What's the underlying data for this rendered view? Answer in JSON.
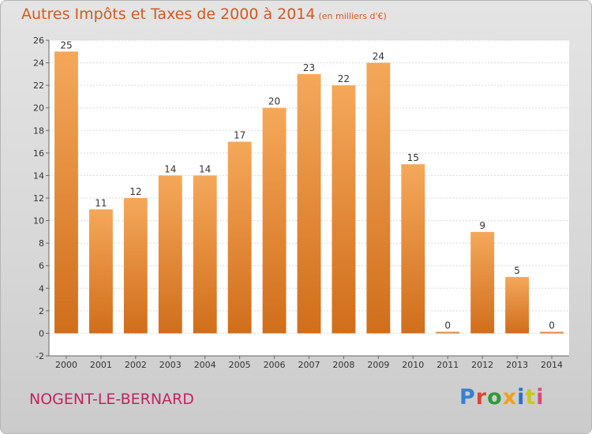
{
  "chart_data": {
    "type": "bar",
    "title": "Autres Impôts et Taxes de 2000 à 2014",
    "subtitle": "(en milliers d'€)",
    "categories": [
      "2000",
      "2001",
      "2002",
      "2003",
      "2004",
      "2005",
      "2006",
      "2007",
      "2008",
      "2009",
      "2010",
      "2011",
      "2012",
      "2013",
      "2014"
    ],
    "values": [
      25,
      11,
      12,
      14,
      14,
      17,
      20,
      23,
      22,
      24,
      15,
      0,
      9,
      5,
      0
    ],
    "ylim": [
      -2,
      26
    ],
    "yticks": [
      -2,
      0,
      2,
      4,
      6,
      8,
      10,
      12,
      14,
      16,
      18,
      20,
      22,
      24,
      26
    ],
    "grid": true,
    "xlabel": "",
    "ylabel": ""
  },
  "footer": {
    "place": "NOGENT-LE-BERNARD",
    "logo": "Proxiti"
  },
  "colors": {
    "title": "#d25a22",
    "place": "#c2255c",
    "bar_light": "#f5a85a",
    "bar_dark": "#d06e1b",
    "logo_letters": [
      "#3b7fd0",
      "#e0452c",
      "#2f9a3a",
      "#f0a020",
      "#2a6fc8",
      "#c8c820",
      "#d94a7a"
    ]
  }
}
